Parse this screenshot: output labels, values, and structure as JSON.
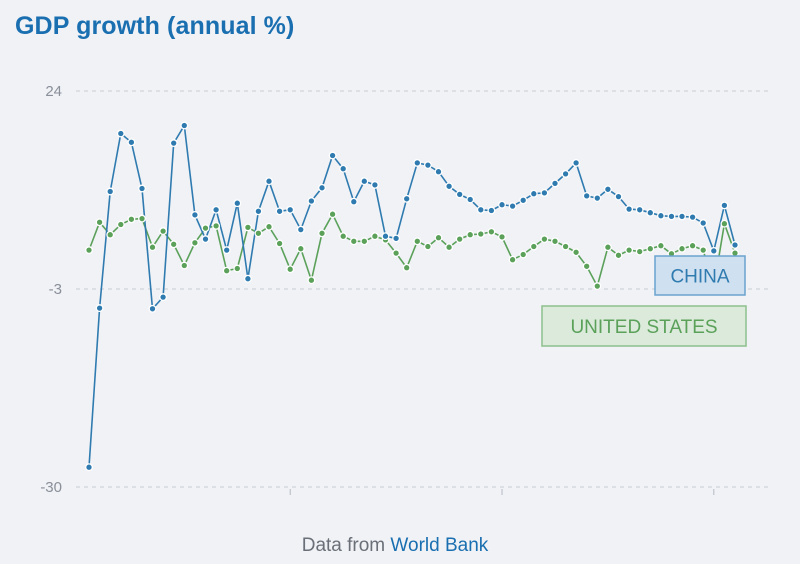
{
  "chart_data": {
    "type": "line",
    "title": "GDP growth (annual %)",
    "xlabel": "",
    "ylabel": "",
    "ylim": [
      -30,
      24
    ],
    "yticks": [
      24,
      -3,
      -30
    ],
    "grid": true,
    "x": [
      1961,
      1962,
      1963,
      1964,
      1965,
      1966,
      1967,
      1968,
      1969,
      1970,
      1971,
      1972,
      1973,
      1974,
      1975,
      1976,
      1977,
      1978,
      1979,
      1980,
      1981,
      1982,
      1983,
      1984,
      1985,
      1986,
      1987,
      1988,
      1989,
      1990,
      1991,
      1992,
      1993,
      1994,
      1995,
      1996,
      1997,
      1998,
      1999,
      2000,
      2001,
      2002,
      2003,
      2004,
      2005,
      2006,
      2007,
      2008,
      2009,
      2010,
      2011,
      2012,
      2013,
      2014,
      2015,
      2016,
      2017,
      2018,
      2019,
      2020,
      2021,
      2022
    ],
    "series": [
      {
        "name": "CHINA",
        "color": "#2f7bb0",
        "values": [
          -27.3,
          -5.6,
          10.3,
          18.2,
          17.0,
          10.7,
          -5.7,
          -4.1,
          16.9,
          19.3,
          7.1,
          3.8,
          7.8,
          2.3,
          8.7,
          -1.6,
          7.6,
          11.7,
          7.6,
          7.8,
          5.1,
          9.0,
          10.8,
          15.2,
          13.4,
          8.9,
          11.7,
          11.2,
          4.2,
          3.9,
          9.3,
          14.2,
          13.9,
          13.0,
          11.0,
          9.9,
          9.2,
          7.8,
          7.7,
          8.5,
          8.3,
          9.1,
          10.0,
          10.1,
          11.4,
          12.7,
          14.2,
          9.7,
          9.4,
          10.6,
          9.6,
          7.9,
          7.8,
          7.4,
          7.0,
          6.9,
          6.9,
          6.8,
          6.0,
          2.2,
          8.4,
          3.0
        ]
      },
      {
        "name": "UNITED STATES",
        "color": "#5ba15a",
        "values": [
          2.3,
          6.1,
          4.4,
          5.8,
          6.5,
          6.6,
          2.7,
          4.9,
          3.1,
          0.2,
          3.3,
          5.3,
          5.6,
          -0.5,
          -0.2,
          5.4,
          4.6,
          5.5,
          3.2,
          -0.3,
          2.5,
          -1.8,
          4.6,
          7.2,
          4.2,
          3.5,
          3.5,
          4.2,
          3.7,
          1.9,
          -0.1,
          3.5,
          2.8,
          4.0,
          2.7,
          3.8,
          4.4,
          4.5,
          4.8,
          4.1,
          1.0,
          1.7,
          2.8,
          3.8,
          3.5,
          2.8,
          2.0,
          0.1,
          -2.6,
          2.7,
          1.6,
          2.3,
          2.1,
          2.5,
          2.9,
          1.8,
          2.5,
          2.9,
          2.3,
          -2.8,
          5.9,
          1.9
        ]
      }
    ],
    "legend_placement": "right-inline"
  },
  "footer": {
    "prefix": "Data from",
    "link": "World Bank"
  }
}
